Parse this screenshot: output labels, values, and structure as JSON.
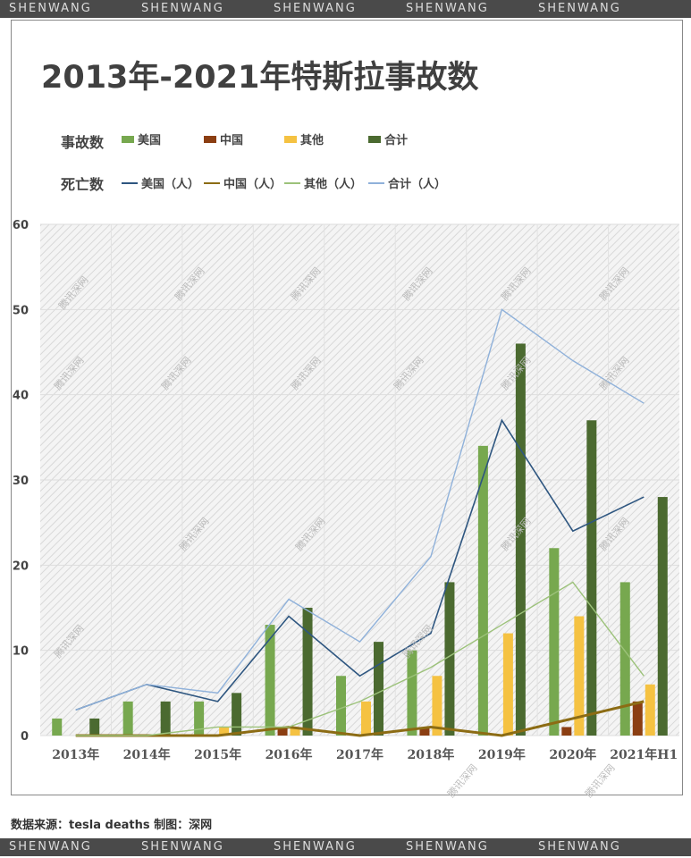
{
  "banner": "SHENWANG",
  "title": "2013年-2021年特斯拉事故数",
  "legend": {
    "accidents_label": "事故数",
    "deaths_label": "死亡数",
    "bars": [
      {
        "name": "美国",
        "color": "#77a84f"
      },
      {
        "name": "中国",
        "color": "#8b3e12"
      },
      {
        "name": "其他",
        "color": "#f5c242"
      },
      {
        "name": "合计",
        "color": "#4b6a30"
      }
    ],
    "lines": [
      {
        "name": "美国（人）",
        "color": "#2e5680"
      },
      {
        "name": "中国（人）",
        "color": "#8c6c14"
      },
      {
        "name": "其他（人）",
        "color": "#9cc27a"
      },
      {
        "name": "合计（人）",
        "color": "#8fb1da"
      }
    ]
  },
  "watermark": "腾讯深网",
  "source": "数据来源：tesla deaths   制图：深网",
  "chart_data": {
    "type": "bar+line",
    "title": "2013年-2021年特斯拉事故数",
    "categories": [
      "2013年",
      "2014年",
      "2015年",
      "2016年",
      "2017年",
      "2018年",
      "2019年",
      "2020年",
      "2021年H1"
    ],
    "ylim": [
      0,
      60
    ],
    "yticks": [
      0,
      10,
      20,
      30,
      40,
      50,
      60
    ],
    "grid": true,
    "legend_position": "top",
    "bar_series": [
      {
        "name": "美国",
        "values": [
          2,
          4,
          4,
          13,
          7,
          10,
          34,
          22,
          18
        ]
      },
      {
        "name": "中国",
        "values": [
          0,
          0,
          0,
          1,
          0,
          1,
          0,
          1,
          4
        ]
      },
      {
        "name": "其他",
        "values": [
          0,
          0,
          1,
          1,
          4,
          7,
          12,
          14,
          6
        ]
      },
      {
        "name": "合计",
        "values": [
          2,
          4,
          5,
          15,
          11,
          18,
          46,
          37,
          28
        ]
      }
    ],
    "line_series": [
      {
        "name": "美国（人）",
        "values": [
          3,
          6,
          4,
          14,
          7,
          12,
          37,
          24,
          28
        ]
      },
      {
        "name": "中国（人）",
        "values": [
          0,
          0,
          0,
          1,
          0,
          1,
          0,
          2,
          4
        ]
      },
      {
        "name": "其他（人）",
        "values": [
          0,
          0,
          1,
          1,
          4,
          8,
          13,
          18,
          7
        ]
      },
      {
        "name": "合计（人）",
        "values": [
          3,
          6,
          5,
          16,
          11,
          21,
          50,
          44,
          39
        ]
      }
    ]
  }
}
